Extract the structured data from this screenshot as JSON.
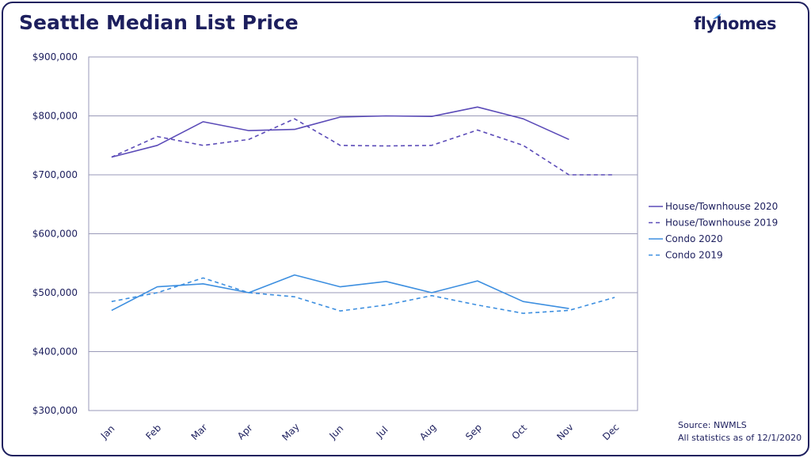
{
  "header": {
    "title": "Seattle Median List Price",
    "logo": "flyhomes"
  },
  "footer": {
    "source": "Source: NWMLS",
    "note": "All statistics as of 12/1/2020"
  },
  "colors": {
    "house": "#5b4bb8",
    "condo": "#3d8fe0",
    "navy": "#1d1f5e",
    "grid": "#9a9ab8"
  },
  "chart_data": {
    "type": "line",
    "title": "Seattle Median List Price",
    "categories": [
      "Jan",
      "Feb",
      "Mar",
      "Apr",
      "May",
      "Jun",
      "Jul",
      "Aug",
      "Sep",
      "Oct",
      "Nov",
      "Dec"
    ],
    "ylim": [
      300000,
      900000
    ],
    "y_ticks": [
      900000,
      800000,
      700000,
      600000,
      500000,
      400000,
      300000
    ],
    "y_tick_labels": [
      "$900,000",
      "$800,000",
      "$700,000",
      "$600,000",
      "$500,000",
      "$400,000",
      "$300,000"
    ],
    "grid": true,
    "legend_position": "right",
    "series": [
      {
        "name": "House/Townhouse 2020",
        "style": "solid",
        "color": "#5b4bb8",
        "values": [
          730000,
          750000,
          790000,
          775000,
          777000,
          798000,
          800000,
          799000,
          815000,
          795000,
          760000,
          null
        ]
      },
      {
        "name": "House/Townhouse 2019",
        "style": "dashed",
        "color": "#5b4bb8",
        "values": [
          730000,
          765000,
          750000,
          760000,
          795000,
          750000,
          749000,
          750000,
          776000,
          750000,
          700000,
          700000
        ]
      },
      {
        "name": "Condo 2020",
        "style": "solid",
        "color": "#3d8fe0",
        "values": [
          470000,
          510000,
          515000,
          500000,
          530000,
          510000,
          519000,
          500000,
          520000,
          485000,
          473000,
          null
        ]
      },
      {
        "name": "Condo 2019",
        "style": "dashed",
        "color": "#3d8fe0",
        "values": [
          485000,
          500000,
          525000,
          500000,
          493000,
          469000,
          479000,
          495000,
          479000,
          465000,
          470000,
          492000
        ]
      }
    ]
  }
}
